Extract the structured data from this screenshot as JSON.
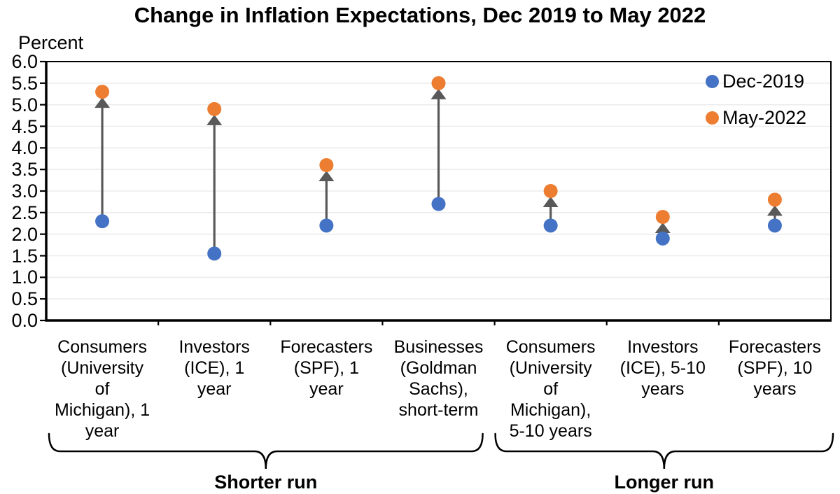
{
  "chart_data": {
    "type": "scatter",
    "title": "Change in Inflation Expectations, Dec 2019 to May 2022",
    "ylabel": "Percent",
    "ylim": [
      0.0,
      6.0
    ],
    "ytick_step": 0.5,
    "ytick_labels": [
      "0.0",
      "0.5",
      "1.0",
      "1.5",
      "2.0",
      "2.5",
      "3.0",
      "3.5",
      "4.0",
      "4.5",
      "5.0",
      "5.5",
      "6.0"
    ],
    "grid": "horizontal-light",
    "legend_position": "top-right-inside",
    "colors": {
      "dec_2019": "#4472C4",
      "may_2022": "#ED7D31",
      "arrow": "#595959",
      "axis": "#000000",
      "gridline": "#ECECEC"
    },
    "categories": [
      {
        "label": "Consumers (University of Michigan), 1 year",
        "label_multiline": "Consumers\n(University\nof\nMichigan), 1\nyear"
      },
      {
        "label": "Investors (ICE), 1 year",
        "label_multiline": "Investors\n(ICE), 1\nyear"
      },
      {
        "label": "Forecasters (SPF), 1 year",
        "label_multiline": "Forecasters\n(SPF), 1\nyear"
      },
      {
        "label": "Businesses (Goldman Sachs), short-term",
        "label_multiline": "Businesses\n(Goldman\nSachs),\nshort-term"
      },
      {
        "label": "Consumers (University of Michigan), 5-10 years",
        "label_multiline": "Consumers\n(University\nof\nMichigan),\n5-10 years"
      },
      {
        "label": "Investors (ICE), 5-10 years",
        "label_multiline": "Investors\n(ICE), 5-10\nyears"
      },
      {
        "label": "Forecasters (SPF), 10 years",
        "label_multiline": "Forecasters\n(SPF), 10\nyears"
      }
    ],
    "series": [
      {
        "name": "Dec-2019",
        "color": "#4472C4",
        "values": [
          2.3,
          1.55,
          2.2,
          2.7,
          2.2,
          1.9,
          2.2
        ]
      },
      {
        "name": "May-2022",
        "color": "#ED7D31",
        "values": [
          5.3,
          4.9,
          3.6,
          5.5,
          3.0,
          2.4,
          2.8
        ]
      }
    ],
    "arrows": {
      "from_series": "Dec-2019",
      "to_series": "May-2022",
      "color": "#595959"
    },
    "groups": [
      {
        "label": "Shorter run",
        "from_category": 0,
        "to_category": 3
      },
      {
        "label": "Longer run",
        "from_category": 4,
        "to_category": 6
      }
    ]
  }
}
